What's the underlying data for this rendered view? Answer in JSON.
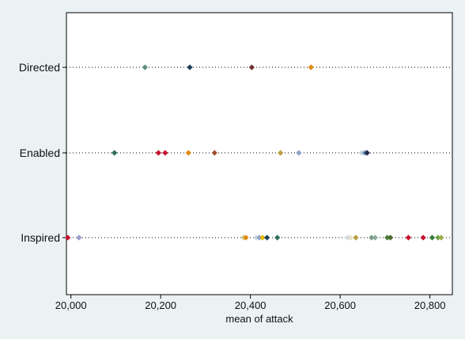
{
  "chart_data": {
    "type": "scatter",
    "title": "",
    "xlabel": "mean of attack",
    "ylabel": "",
    "xlim": [
      19990,
      20850
    ],
    "grid": true,
    "legend": "none",
    "x_ticks": [
      {
        "value": 20000,
        "label": "20,000"
      },
      {
        "value": 20200,
        "label": "20,200"
      },
      {
        "value": 20400,
        "label": "20,400"
      },
      {
        "value": 20600,
        "label": "20,600"
      },
      {
        "value": 20800,
        "label": "20,800"
      }
    ],
    "categories": [
      "Directed",
      "Enabled",
      "Inspired"
    ],
    "points": [
      {
        "category": "Directed",
        "x": 20165,
        "color": "#5f8a7a"
      },
      {
        "category": "Directed",
        "x": 20265,
        "color": "#1c3f5c"
      },
      {
        "category": "Directed",
        "x": 20403,
        "color": "#6b2e2e"
      },
      {
        "category": "Directed",
        "x": 20535,
        "color": "#e08a10"
      },
      {
        "category": "Enabled",
        "x": 20097,
        "color": "#2f6f5a"
      },
      {
        "category": "Enabled",
        "x": 20195,
        "color": "#c8102e"
      },
      {
        "category": "Enabled",
        "x": 20210,
        "color": "#c8102e"
      },
      {
        "category": "Enabled",
        "x": 20262,
        "color": "#e08a10"
      },
      {
        "category": "Enabled",
        "x": 20320,
        "color": "#a0522d"
      },
      {
        "category": "Enabled",
        "x": 20467,
        "color": "#b8a040"
      },
      {
        "category": "Enabled",
        "x": 20508,
        "color": "#8ea0c8"
      },
      {
        "category": "Enabled",
        "x": 20648,
        "color": "#c9d3e0"
      },
      {
        "category": "Enabled",
        "x": 20655,
        "color": "#6f8fb8"
      },
      {
        "category": "Enabled",
        "x": 20660,
        "color": "#1f2e4a"
      },
      {
        "category": "Inspired",
        "x": 19993,
        "color": "#c8102e"
      },
      {
        "category": "Inspired",
        "x": 20018,
        "color": "#9a9ad0"
      },
      {
        "category": "Inspired",
        "x": 20385,
        "color": "#d9c48a"
      },
      {
        "category": "Inspired",
        "x": 20390,
        "color": "#e08a10"
      },
      {
        "category": "Inspired",
        "x": 20413,
        "color": "#c9d3e0"
      },
      {
        "category": "Inspired",
        "x": 20420,
        "color": "#8ea0c8"
      },
      {
        "category": "Inspired",
        "x": 20427,
        "color": "#e6b800"
      },
      {
        "category": "Inspired",
        "x": 20437,
        "color": "#1c3f5c"
      },
      {
        "category": "Inspired",
        "x": 20460,
        "color": "#2f6f5a"
      },
      {
        "category": "Inspired",
        "x": 20617,
        "color": "#d0d8e0"
      },
      {
        "category": "Inspired",
        "x": 20623,
        "color": "#e6e0c8"
      },
      {
        "category": "Inspired",
        "x": 20635,
        "color": "#b8a040"
      },
      {
        "category": "Inspired",
        "x": 20670,
        "color": "#7a9a8a"
      },
      {
        "category": "Inspired",
        "x": 20678,
        "color": "#8aaa9a"
      },
      {
        "category": "Inspired",
        "x": 20705,
        "color": "#4a7a3a"
      },
      {
        "category": "Inspired",
        "x": 20712,
        "color": "#4a6a2a"
      },
      {
        "category": "Inspired",
        "x": 20752,
        "color": "#c8102e"
      },
      {
        "category": "Inspired",
        "x": 20785,
        "color": "#c8102e"
      },
      {
        "category": "Inspired",
        "x": 20805,
        "color": "#3a7a3a"
      },
      {
        "category": "Inspired",
        "x": 20818,
        "color": "#6aa04a"
      },
      {
        "category": "Inspired",
        "x": 20825,
        "color": "#9ab04a"
      }
    ]
  }
}
